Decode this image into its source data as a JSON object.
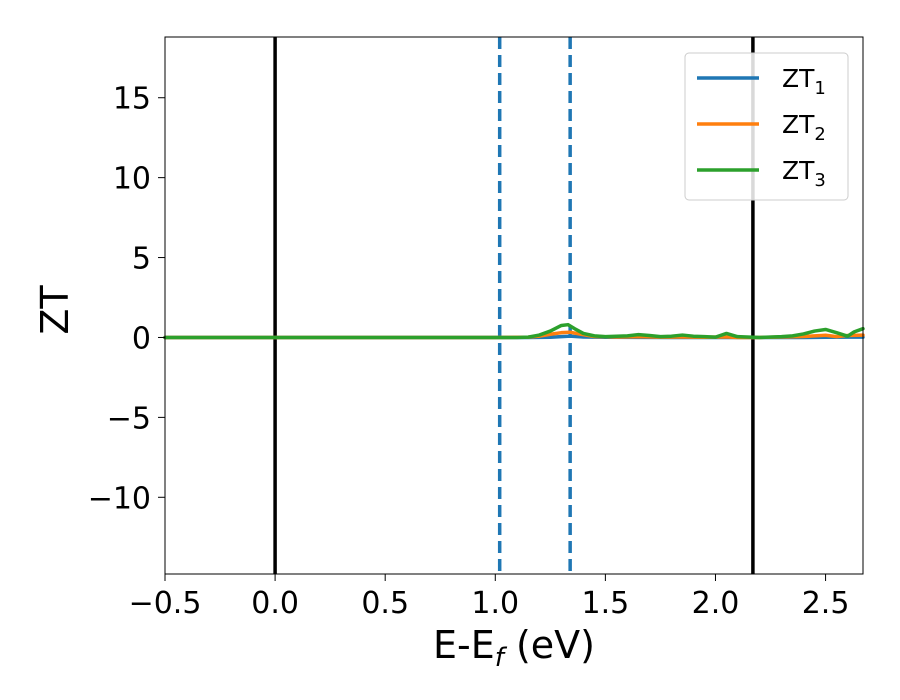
{
  "chart_data": {
    "type": "line",
    "title": "",
    "xlabel": {
      "main": "E-E",
      "sub": "f",
      "unit": " (eV)"
    },
    "ylabel": "ZT",
    "xlim": [
      -0.5,
      2.67
    ],
    "ylim": [
      -14.8,
      18.8
    ],
    "xticks": [
      -0.5,
      0.0,
      0.5,
      1.0,
      1.5,
      2.0,
      2.5
    ],
    "xtick_labels": [
      "−0.5",
      "0.0",
      "0.5",
      "1.0",
      "1.5",
      "2.0",
      "2.5"
    ],
    "yticks": [
      -10,
      -5,
      0,
      5,
      10,
      15
    ],
    "ytick_labels": [
      "−10",
      "−5",
      "0",
      "5",
      "10",
      "15"
    ],
    "grid": false,
    "legend_position": "top-right",
    "vlines": [
      {
        "x": 0.0,
        "style": "solid",
        "color": "#000000"
      },
      {
        "x": 2.17,
        "style": "solid",
        "color": "#000000"
      },
      {
        "x": 1.02,
        "style": "dashed",
        "color": "#1f77b4"
      },
      {
        "x": 1.34,
        "style": "dashed",
        "color": "#1f77b4"
      }
    ],
    "series": [
      {
        "name": "ZT",
        "sub": "1",
        "color": "#1f77b4",
        "x": [
          -0.5,
          0.0,
          0.5,
          1.0,
          1.15,
          1.25,
          1.3,
          1.34,
          1.4,
          1.5,
          1.8,
          2.0,
          2.2,
          2.4,
          2.5,
          2.6,
          2.67
        ],
        "y": [
          0,
          0,
          0,
          0,
          0,
          0.01,
          0.05,
          0.08,
          0.03,
          0.01,
          0,
          0,
          0,
          0,
          0.01,
          0.02,
          0.02
        ]
      },
      {
        "name": "ZT",
        "sub": "2",
        "color": "#ff7f0e",
        "x": [
          -0.5,
          0.0,
          0.5,
          1.0,
          1.15,
          1.2,
          1.25,
          1.3,
          1.34,
          1.38,
          1.45,
          1.55,
          1.65,
          1.75,
          1.85,
          1.95,
          2.05,
          2.1,
          2.2,
          2.3,
          2.4,
          2.5,
          2.55,
          2.6,
          2.67
        ],
        "y": [
          0,
          0,
          0,
          0,
          0.02,
          0.08,
          0.2,
          0.3,
          0.33,
          0.22,
          0.06,
          0.03,
          0.05,
          0.02,
          0.03,
          0.01,
          0.04,
          0,
          0,
          0.03,
          0.06,
          0.14,
          0.05,
          0.12,
          0.15
        ]
      },
      {
        "name": "ZT",
        "sub": "3",
        "color": "#2ca02c",
        "x": [
          -0.5,
          0.0,
          0.5,
          1.0,
          1.1,
          1.15,
          1.2,
          1.25,
          1.3,
          1.33,
          1.36,
          1.4,
          1.45,
          1.5,
          1.55,
          1.6,
          1.65,
          1.7,
          1.75,
          1.8,
          1.85,
          1.9,
          1.95,
          2.0,
          2.05,
          2.1,
          2.2,
          2.3,
          2.35,
          2.4,
          2.45,
          2.5,
          2.55,
          2.6,
          2.63,
          2.67
        ],
        "y": [
          0,
          0,
          0,
          0,
          0,
          0.02,
          0.15,
          0.4,
          0.75,
          0.8,
          0.55,
          0.25,
          0.1,
          0.05,
          0.08,
          0.1,
          0.18,
          0.12,
          0.05,
          0.08,
          0.15,
          0.08,
          0.05,
          0.02,
          0.25,
          0.05,
          0,
          0.05,
          0.1,
          0.22,
          0.4,
          0.5,
          0.3,
          0.08,
          0.35,
          0.55
        ]
      }
    ]
  }
}
